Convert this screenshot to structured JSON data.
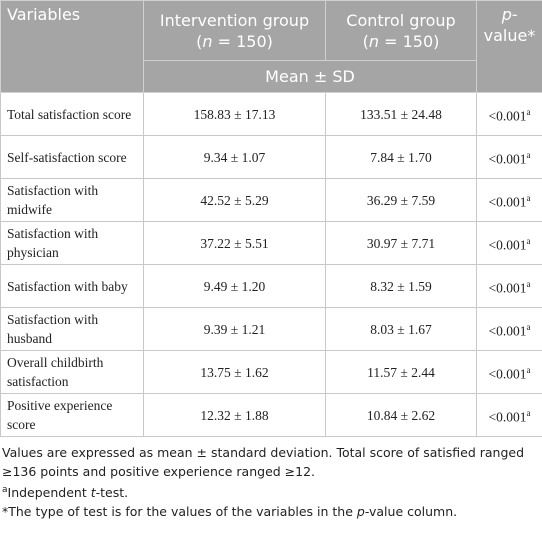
{
  "table": {
    "header": {
      "variables": "Variables",
      "groups": [
        {
          "name": "Intervention group",
          "n": [
            {
              "text": "("
            },
            {
              "text": "n",
              "italic": true
            },
            {
              "text": " = 150)"
            }
          ]
        },
        {
          "name": "Control group",
          "n": [
            {
              "text": "("
            },
            {
              "text": "n",
              "italic": true
            },
            {
              "text": " = 150)"
            }
          ]
        }
      ],
      "p_value": [
        {
          "text": "p",
          "italic": true
        },
        {
          "text": "-"
        },
        {
          "text": "value*"
        }
      ],
      "stat": "Mean ± SD"
    },
    "rows": [
      {
        "variable": "Total satisfaction score",
        "intervention": "158.83 ± 17.13",
        "control": "133.51 ± 24.48",
        "p": "<0.001",
        "note": "a"
      },
      {
        "variable": "Self-satisfaction score",
        "intervention": "9.34 ± 1.07",
        "control": "7.84 ± 1.70",
        "p": "<0.001",
        "note": "a"
      },
      {
        "variable": "Satisfaction with midwife",
        "intervention": "42.52 ± 5.29",
        "control": "36.29 ± 7.59",
        "p": "<0.001",
        "note": "a"
      },
      {
        "variable": "Satisfaction with physician",
        "intervention": "37.22 ± 5.51",
        "control": "30.97 ± 7.71",
        "p": "<0.001",
        "note": "a"
      },
      {
        "variable": "Satisfaction with baby",
        "intervention": "9.49 ± 1.20",
        "control": "8.32 ± 1.59",
        "p": "<0.001",
        "note": "a"
      },
      {
        "variable": "Satisfaction with husband",
        "intervention": "9.39 ± 1.21",
        "control": "8.03 ± 1.67",
        "p": "<0.001",
        "note": "a"
      },
      {
        "variable": "Overall childbirth satisfaction",
        "intervention": "13.75 ± 1.62",
        "control": "11.57 ± 2.44",
        "p": "<0.001",
        "note": "a"
      },
      {
        "variable": "Positive experience score",
        "intervention": "12.32 ± 1.88",
        "control": "10.84 ± 2.62",
        "p": "<0.001",
        "note": "a"
      }
    ]
  },
  "footnotes": [
    [
      {
        "text": "Values are expressed as mean ± standard deviation. Total score of satisfied ranged ≥136 points and positive experience ranged ≥12."
      }
    ],
    [
      {
        "text": "a",
        "sup": true
      },
      {
        "text": "Independent "
      },
      {
        "text": "t",
        "italic": true
      },
      {
        "text": "-test."
      }
    ],
    [
      {
        "text": "*The type of test is for the values of the variables in the "
      },
      {
        "text": "p",
        "italic": true
      },
      {
        "text": "-value column."
      }
    ]
  ]
}
